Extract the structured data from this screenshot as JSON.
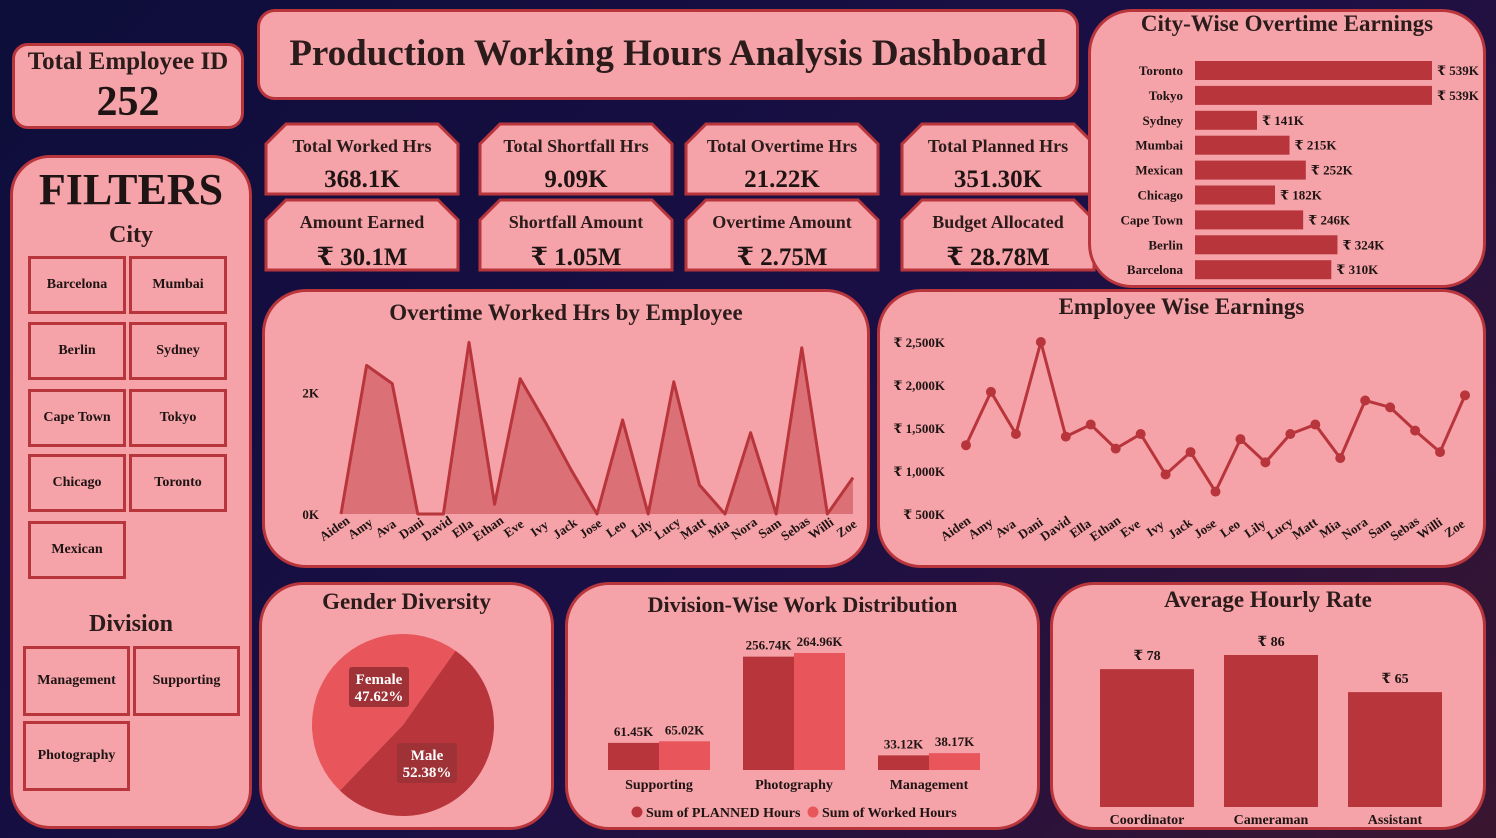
{
  "header": {
    "title": "Production Working Hours Analysis Dashboard"
  },
  "employee_count": {
    "label": "Total Employee ID",
    "value": "252"
  },
  "filters": {
    "title": "FILTERS",
    "city_label": "City",
    "cities": [
      "Barcelona",
      "Mumbai",
      "Berlin",
      "Sydney",
      "Cape Town",
      "Tokyo",
      "Chicago",
      "Toronto",
      "Mexican"
    ],
    "division_label": "Division",
    "divisions": [
      "Management",
      "Supporting",
      "Photography"
    ]
  },
  "kpis": [
    {
      "label": "Total Worked Hrs",
      "value": "368.1K"
    },
    {
      "label": "Total Shortfall Hrs",
      "value": "9.09K"
    },
    {
      "label": "Total Overtime Hrs",
      "value": "21.22K"
    },
    {
      "label": "Total Planned Hrs",
      "value": "351.30K"
    },
    {
      "label": "Amount Earned",
      "value": "₹ 30.1M"
    },
    {
      "label": "Shortfall Amount",
      "value": "₹ 1.05M"
    },
    {
      "label": "Overtime Amount",
      "value": "₹ 2.75M"
    },
    {
      "label": "Budget Allocated",
      "value": "₹ 28.78M"
    }
  ],
  "colors": {
    "dark_red": "#b8353c",
    "light_red": "#e8555b",
    "card_bg": "#f5a3a8",
    "area_fill": "#db7176"
  },
  "chart_data": [
    {
      "id": "city_overtime",
      "type": "bar",
      "orientation": "horizontal",
      "title": "City-Wise Overtime Earnings",
      "categories": [
        "Toronto",
        "Tokyo",
        "Sydney",
        "Mumbai",
        "Mexican",
        "Chicago",
        "Cape Town",
        "Berlin",
        "Barcelona"
      ],
      "values": [
        539,
        539,
        141,
        215,
        252,
        182,
        246,
        324,
        310
      ],
      "labels": [
        "₹ 539K",
        "₹ 539K",
        "₹ 141K",
        "₹ 215K",
        "₹ 252K",
        "₹ 182K",
        "₹ 246K",
        "₹ 324K",
        "₹ 310K"
      ],
      "xlim": [
        0,
        539
      ]
    },
    {
      "id": "overtime_by_employee",
      "type": "area",
      "title": "Overtime Worked Hrs by Employee",
      "categories": [
        "Aiden",
        "Amy",
        "Ava",
        "Dani",
        "David",
        "Ella",
        "Ethan",
        "Eve",
        "Ivy",
        "Jack",
        "Jose",
        "Leo",
        "Lily",
        "Lucy",
        "Matt",
        "Mia",
        "Nora",
        "Sam",
        "Sebas",
        "Willi",
        "Zoe"
      ],
      "values": [
        0,
        2450,
        2150,
        0,
        0,
        2830,
        160,
        2230,
        1500,
        720,
        0,
        1550,
        0,
        2180,
        480,
        0,
        1340,
        0,
        2740,
        0,
        600
      ],
      "yticks": [
        "0K",
        "2K"
      ],
      "ylim": [
        0,
        3000
      ]
    },
    {
      "id": "employee_earnings",
      "type": "line",
      "title": "Employee Wise Earnings",
      "categories": [
        "Aiden",
        "Amy",
        "Ava",
        "Dani",
        "David",
        "Ella",
        "Ethan",
        "Eve",
        "Ivy",
        "Jack",
        "Jose",
        "Leo",
        "Lily",
        "Lucy",
        "Matt",
        "Mia",
        "Nora",
        "Sam",
        "Sebas",
        "Willi",
        "Zoe"
      ],
      "values": [
        1300,
        1920,
        1430,
        2500,
        1400,
        1540,
        1260,
        1430,
        960,
        1220,
        760,
        1370,
        1100,
        1430,
        1540,
        1150,
        1820,
        1740,
        1470,
        1220,
        1880
      ],
      "yticks": [
        "₹ 500K",
        "₹ 1,000K",
        "₹ 1,500K",
        "₹ 2,000K",
        "₹ 2,500K"
      ],
      "ylim": [
        500,
        2500
      ]
    },
    {
      "id": "gender",
      "type": "pie",
      "title": "Gender Diversity",
      "slices": [
        {
          "name": "Female",
          "value": 47.62,
          "label": "47.62%"
        },
        {
          "name": "Male",
          "value": 52.38,
          "label": "52.38%"
        }
      ]
    },
    {
      "id": "division_work",
      "type": "bar",
      "title": "Division-Wise Work Distribution",
      "categories": [
        "Supporting",
        "Photography",
        "Management"
      ],
      "series": [
        {
          "name": "Sum of PLANNED Hours",
          "values": [
            61.45,
            256.74,
            33.12
          ],
          "labels": [
            "61.45K",
            "256.74K",
            "33.12K"
          ]
        },
        {
          "name": "Sum of Worked Hours",
          "values": [
            65.02,
            264.96,
            38.17
          ],
          "labels": [
            "65.02K",
            "264.96K",
            "38.17K"
          ]
        }
      ],
      "ylim": [
        0,
        265
      ]
    },
    {
      "id": "hourly_rate",
      "type": "bar",
      "title": "Average Hourly Rate",
      "categories": [
        "Coordinator",
        "Cameraman",
        "Assistant"
      ],
      "values": [
        78,
        86,
        65
      ],
      "labels": [
        "₹ 78",
        "₹ 86",
        "₹ 65"
      ],
      "ylim": [
        0,
        86
      ]
    }
  ]
}
